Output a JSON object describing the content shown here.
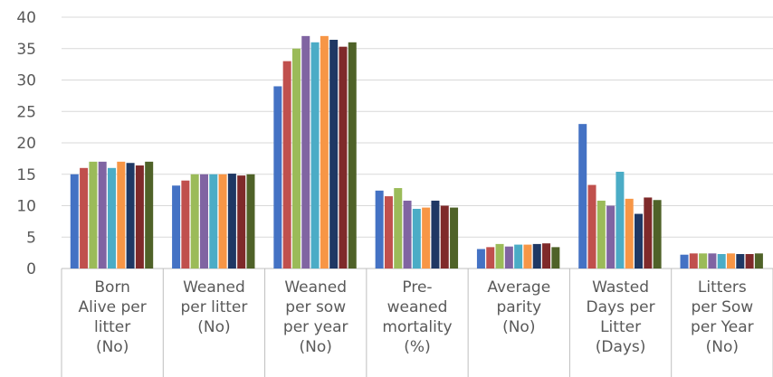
{
  "chart_data": {
    "type": "bar",
    "title": "",
    "xlabel": "",
    "ylabel": "",
    "ylim": [
      0,
      40
    ],
    "yticks": [
      0,
      5,
      10,
      15,
      20,
      25,
      30,
      35,
      40
    ],
    "grid": true,
    "legend": "none",
    "categories": [
      [
        "Born",
        "Alive per",
        "litter",
        "(No)"
      ],
      [
        "Weaned",
        "per litter",
        "(No)"
      ],
      [
        "Weaned",
        "per sow",
        "per year",
        "(No)"
      ],
      [
        "Pre-",
        "weaned",
        "mortality",
        "(%)"
      ],
      [
        "Average",
        "parity",
        "(No)"
      ],
      [
        "Wasted",
        "Days per",
        "Litter",
        "(Days)"
      ],
      [
        "Litters",
        "per Sow",
        "per Year",
        "(No)"
      ]
    ],
    "colors": [
      "#4472C4",
      "#C0504D",
      "#9BBB59",
      "#8064A2",
      "#4BACC6",
      "#F79646",
      "#1F3864",
      "#7F2A2A",
      "#4F6228"
    ],
    "series": [
      {
        "values": [
          15.0,
          13.2,
          29.0,
          12.4,
          3.1,
          23.0,
          2.2
        ]
      },
      {
        "values": [
          16.0,
          14.0,
          33.0,
          11.5,
          3.4,
          13.3,
          2.4
        ]
      },
      {
        "values": [
          17.0,
          15.0,
          35.0,
          12.8,
          3.9,
          10.8,
          2.4
        ]
      },
      {
        "values": [
          17.0,
          15.0,
          37.0,
          10.8,
          3.5,
          10.0,
          2.4
        ]
      },
      {
        "values": [
          16.0,
          15.0,
          36.0,
          9.5,
          3.8,
          15.4,
          2.3
        ]
      },
      {
        "values": [
          17.0,
          15.0,
          37.0,
          9.7,
          3.8,
          11.1,
          2.4
        ]
      },
      {
        "values": [
          16.8,
          15.1,
          36.4,
          10.8,
          3.9,
          8.7,
          2.3
        ]
      },
      {
        "values": [
          16.4,
          14.8,
          35.3,
          10.0,
          4.0,
          11.3,
          2.3
        ]
      },
      {
        "values": [
          17.0,
          15.0,
          36.0,
          9.7,
          3.4,
          10.9,
          2.4
        ]
      }
    ]
  }
}
